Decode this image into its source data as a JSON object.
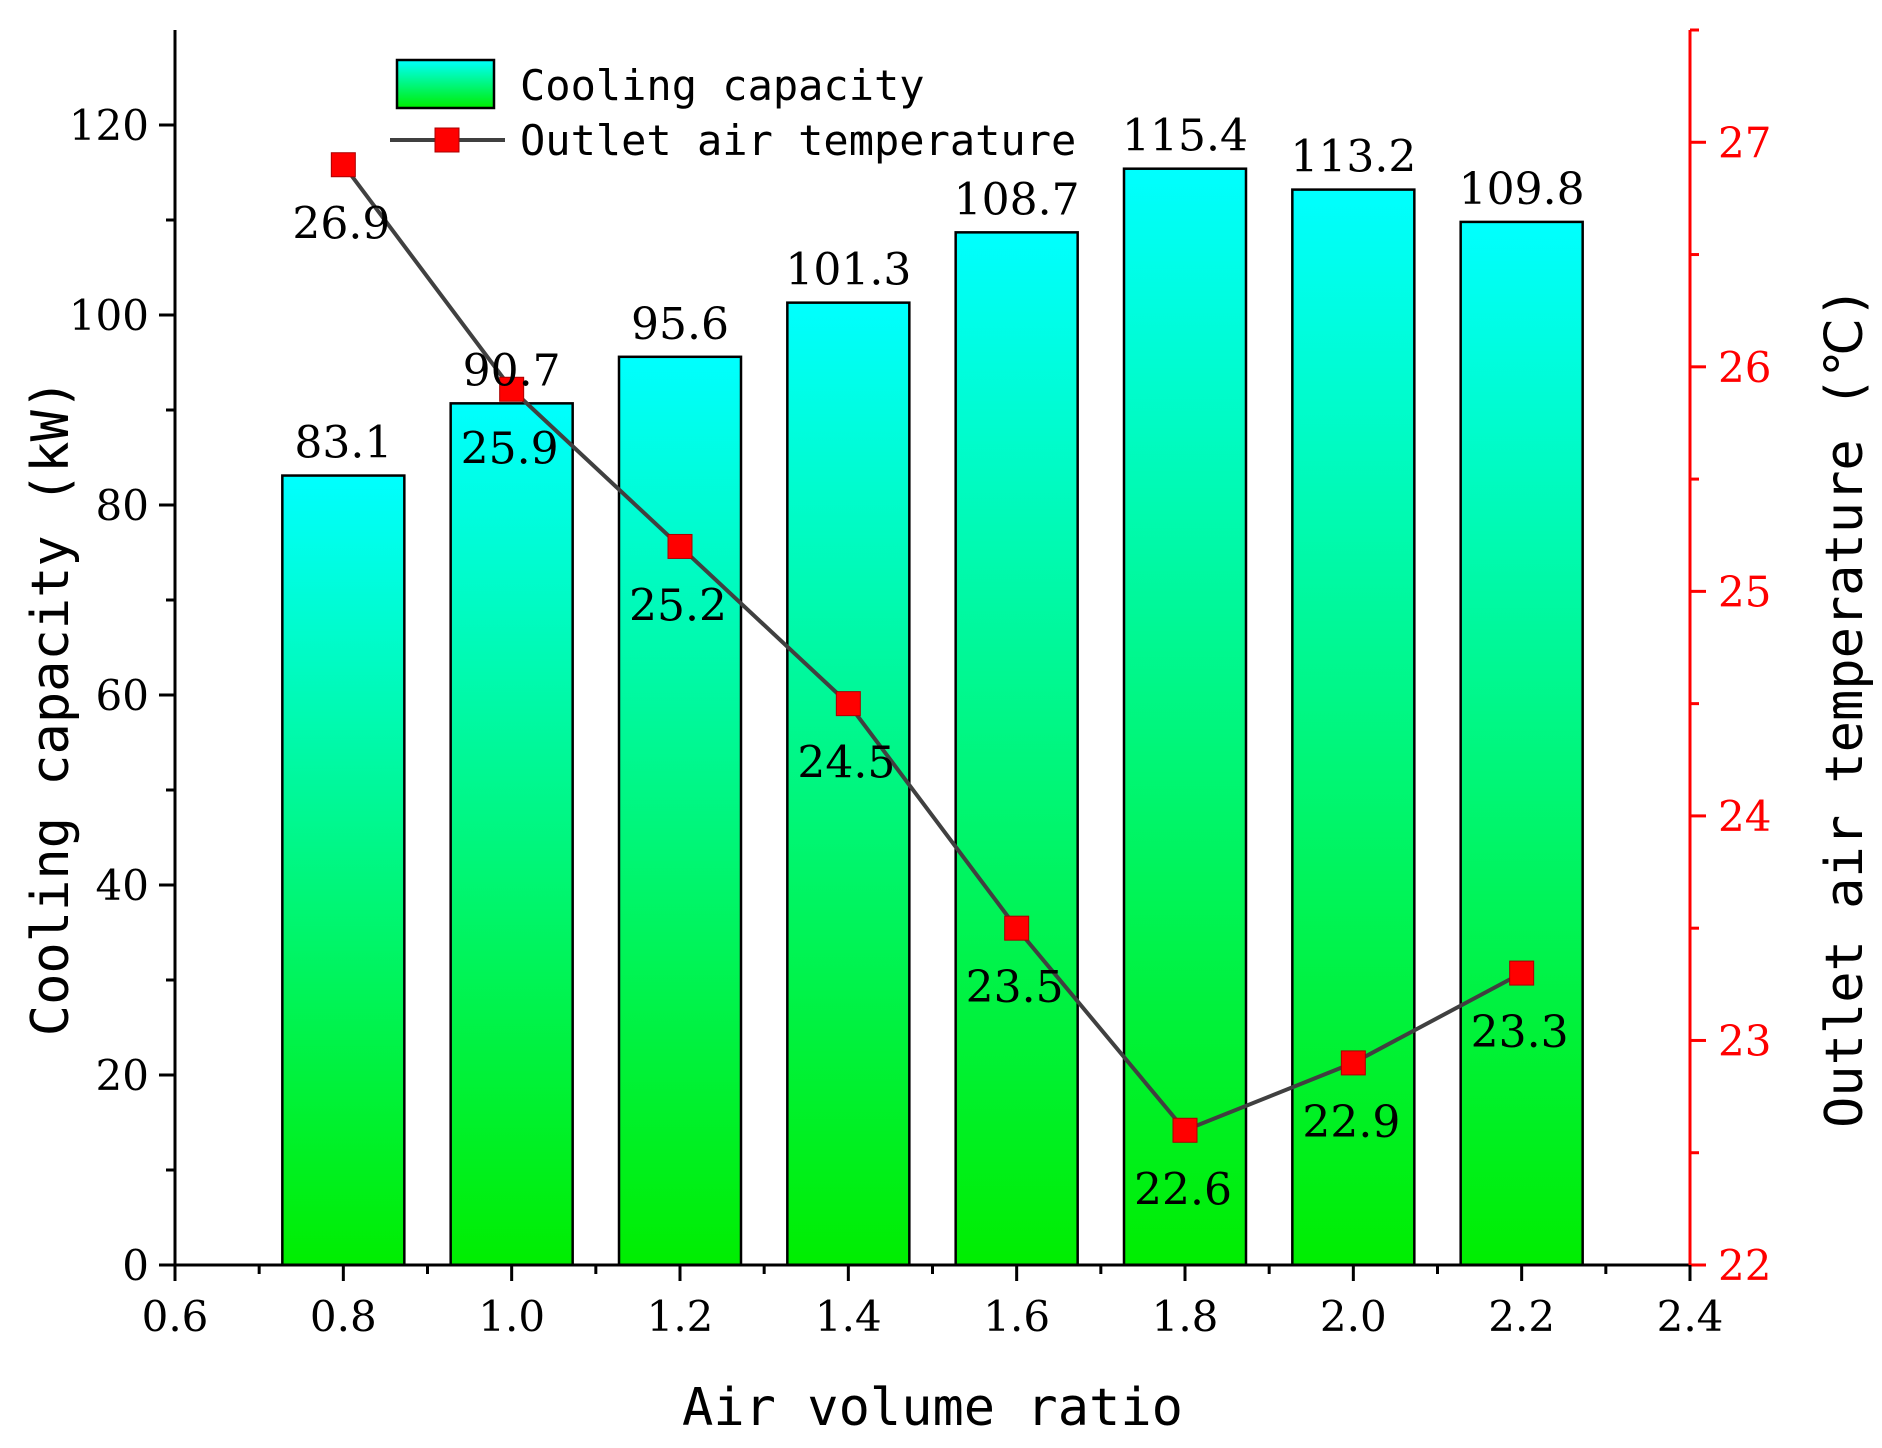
{
  "chart_data": {
    "type": "bar",
    "x": [
      0.8,
      1.0,
      1.2,
      1.4,
      1.6,
      1.8,
      2.0,
      2.2
    ],
    "xlabel": "Air volume ratio",
    "xlim": [
      0.6,
      2.4
    ],
    "x_ticks": [
      "0.6",
      "0.8",
      "1.0",
      "1.2",
      "1.4",
      "1.6",
      "1.8",
      "2.0",
      "2.2",
      "2.4"
    ],
    "ylabel": "Cooling capacity (kW)",
    "ylim": [
      0,
      130
    ],
    "y_ticks": [
      "0",
      "20",
      "40",
      "60",
      "80",
      "100",
      "120"
    ],
    "y2label": "Outlet air temperature (℃)",
    "y2lim": [
      22,
      27.5
    ],
    "y2_ticks": [
      "22",
      "23",
      "24",
      "25",
      "26",
      "27"
    ],
    "legend_position": "top-left",
    "series": [
      {
        "name": "Cooling capacity",
        "type": "bar",
        "axis": "left",
        "values": [
          83.1,
          90.7,
          95.6,
          101.3,
          108.7,
          115.4,
          113.2,
          109.8
        ],
        "labels": [
          "83.1",
          "90.7",
          "95.6",
          "101.3",
          "108.7",
          "115.4",
          "113.2",
          "109.8"
        ],
        "color_top": "#00ffff",
        "color_bottom": "#00ee00"
      },
      {
        "name": "Outlet air temperature",
        "type": "line",
        "axis": "right",
        "values": [
          26.9,
          25.9,
          25.2,
          24.5,
          23.5,
          22.6,
          22.9,
          23.3
        ],
        "labels": [
          "26.9",
          "25.9",
          "25.2",
          "24.5",
          "23.5",
          "22.6",
          "22.9",
          "23.3"
        ],
        "line_color": "#404040",
        "marker_color": "#ff0000"
      }
    ],
    "right_axis_color": "#ff0000"
  }
}
